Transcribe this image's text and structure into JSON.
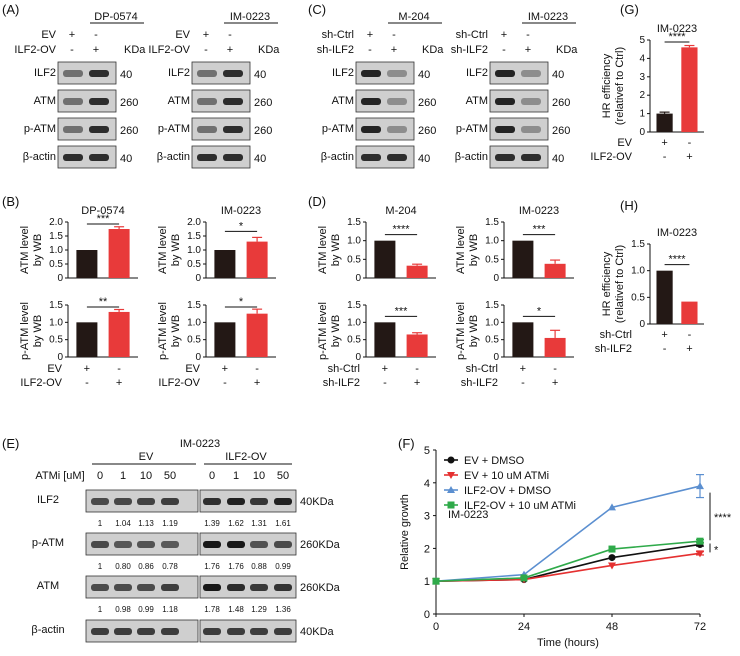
{
  "colors": {
    "black_bar": "#231815",
    "red_bar": "#e83a3a",
    "blue": "#5b8fd0",
    "green": "#2faa4a",
    "red": "#e53030",
    "band": "#2a2a2a"
  },
  "panelA": {
    "label": "(A)",
    "blots": [
      {
        "title": "DP-0574",
        "rows": [
          "EV",
          "ILF2-OV"
        ],
        "marks": [
          [
            "+",
            "-"
          ],
          [
            "-",
            "+"
          ]
        ],
        "kda": "KDa",
        "bands": [
          {
            "name": "ILF2",
            "mw": "40"
          },
          {
            "name": "ATM",
            "mw": "260"
          },
          {
            "name": "p-ATM",
            "mw": "260"
          },
          {
            "name": "β-actin",
            "mw": "40"
          }
        ]
      },
      {
        "title": "IM-0223",
        "rows": [
          "EV",
          "ILF2-OV"
        ],
        "marks": [
          [
            "+",
            "-"
          ],
          [
            "-",
            "+"
          ]
        ],
        "kda": "KDa",
        "bands": [
          {
            "name": "ILF2",
            "mw": "40"
          },
          {
            "name": "ATM",
            "mw": "260"
          },
          {
            "name": "p-ATM",
            "mw": "260"
          },
          {
            "name": "β-actin",
            "mw": "40"
          }
        ]
      }
    ]
  },
  "panelC": {
    "label": "(C)",
    "blots": [
      {
        "title": "M-204",
        "rows": [
          "sh-Ctrl",
          "sh-ILF2"
        ],
        "marks": [
          [
            "+",
            "-"
          ],
          [
            "-",
            "+"
          ]
        ],
        "kda": "KDa",
        "bands": [
          {
            "name": "ILF2",
            "mw": "40"
          },
          {
            "name": "ATM",
            "mw": "260"
          },
          {
            "name": "p-ATM",
            "mw": "260"
          },
          {
            "name": "β-actin",
            "mw": "40"
          }
        ]
      },
      {
        "title": "IM-0223",
        "rows": [
          "sh-Ctrl",
          "sh-ILF2"
        ],
        "marks": [
          [
            "+",
            "-"
          ],
          [
            "-",
            "+"
          ]
        ],
        "kda": "KDa",
        "bands": [
          {
            "name": "ILF2",
            "mw": "40"
          },
          {
            "name": "ATM",
            "mw": "260"
          },
          {
            "name": "p-ATM",
            "mw": "260"
          },
          {
            "name": "β-actin",
            "mw": "40"
          }
        ]
      }
    ]
  },
  "panelB": {
    "label": "(B)",
    "xrows": [
      "EV",
      "ILF2-OV"
    ],
    "xmarks": [
      [
        "+",
        "-"
      ],
      [
        "-",
        "+"
      ]
    ]
  },
  "panelD": {
    "label": "(D)",
    "xrows": [
      "sh-Ctrl",
      "sh-ILF2"
    ],
    "xmarks": [
      [
        "+",
        "-"
      ],
      [
        "-",
        "+"
      ]
    ]
  },
  "panelE": {
    "label": "(E)",
    "title": "IM-0223",
    "groups": [
      "EV",
      "ILF2-OV"
    ],
    "atmi_label": "ATMi [uM]",
    "doses": [
      "0",
      "1",
      "10",
      "50",
      "0",
      "1",
      "10",
      "50"
    ],
    "blots": [
      {
        "name": "ILF2",
        "mw": "40KDa",
        "quant": [
          "1",
          "1.04",
          "1.13",
          "1.19",
          "1.39",
          "1.62",
          "1.31",
          "1.61"
        ]
      },
      {
        "name": "p-ATM",
        "mw": "260KDa",
        "quant": [
          "1",
          "0.80",
          "0.86",
          "0.78",
          "1.76",
          "1.76",
          "0.88",
          "0.99"
        ]
      },
      {
        "name": "ATM",
        "mw": "260KDa",
        "quant": [
          "1",
          "0.98",
          "0.99",
          "1.18",
          "1.78",
          "1.48",
          "1.29",
          "1.36"
        ]
      },
      {
        "name": "β-actin",
        "mw": "40KDa",
        "quant": []
      }
    ]
  },
  "panelG": {
    "label": "(G)"
  },
  "panelH": {
    "label": "(H)"
  },
  "panelF": {
    "label": "(F)"
  },
  "chart_data": [
    {
      "id": "B1",
      "type": "bar",
      "title": "DP-0574",
      "ylabel": "ATM level by WB",
      "ylim": [
        0,
        2.0
      ],
      "yticks": [
        "0",
        "0.5",
        "1.0",
        "1.5",
        "2.0"
      ],
      "categories": [
        "EV",
        "ILF2-OV"
      ],
      "values": [
        1.0,
        1.75
      ],
      "errors": [
        0,
        0.08
      ],
      "significance": "***"
    },
    {
      "id": "B2",
      "type": "bar",
      "title": "IM-0223",
      "ylabel": "ATM level by WB",
      "ylim": [
        0,
        2.0
      ],
      "yticks": [
        "0",
        "0.5",
        "1.0",
        "1.5",
        "2.0"
      ],
      "categories": [
        "EV",
        "ILF2-OV"
      ],
      "values": [
        1.0,
        1.3
      ],
      "errors": [
        0,
        0.15
      ],
      "significance": "*"
    },
    {
      "id": "B3",
      "type": "bar",
      "title": "",
      "ylabel": "p-ATM level by WB",
      "ylim": [
        0,
        1.5
      ],
      "yticks": [
        "0",
        "0.5",
        "1.0",
        "1.5"
      ],
      "categories": [
        "EV",
        "ILF2-OV"
      ],
      "values": [
        1.0,
        1.3
      ],
      "errors": [
        0,
        0.07
      ],
      "significance": "**"
    },
    {
      "id": "B4",
      "type": "bar",
      "title": "",
      "ylabel": "p-ATM level by WB",
      "ylim": [
        0,
        1.5
      ],
      "yticks": [
        "0",
        "0.5",
        "1.0",
        "1.5"
      ],
      "categories": [
        "EV",
        "ILF2-OV"
      ],
      "values": [
        1.0,
        1.25
      ],
      "errors": [
        0,
        0.13
      ],
      "significance": "*"
    },
    {
      "id": "D1",
      "type": "bar",
      "title": "M-204",
      "ylabel": "ATM level by WB",
      "ylim": [
        0,
        1.5
      ],
      "yticks": [
        "0",
        "0.5",
        "1.0",
        "1.5"
      ],
      "categories": [
        "sh-Ctrl",
        "sh-ILF2"
      ],
      "values": [
        1.0,
        0.33
      ],
      "errors": [
        0,
        0.04
      ],
      "significance": "****"
    },
    {
      "id": "D2",
      "type": "bar",
      "title": "IM-0223",
      "ylabel": "ATM level by WB",
      "ylim": [
        0,
        1.5
      ],
      "yticks": [
        "0",
        "0.5",
        "1.0",
        "1.5"
      ],
      "categories": [
        "sh-Ctrl",
        "sh-ILF2"
      ],
      "values": [
        1.0,
        0.38
      ],
      "errors": [
        0,
        0.1
      ],
      "significance": "***"
    },
    {
      "id": "D3",
      "type": "bar",
      "title": "",
      "ylabel": "p-ATM level by WB",
      "ylim": [
        0,
        1.5
      ],
      "yticks": [
        "0",
        "0.5",
        "1.0",
        "1.5"
      ],
      "categories": [
        "sh-Ctrl",
        "sh-ILF2"
      ],
      "values": [
        1.0,
        0.65
      ],
      "errors": [
        0,
        0.05
      ],
      "significance": "***"
    },
    {
      "id": "D4",
      "type": "bar",
      "title": "",
      "ylabel": "p-ATM level by WB",
      "ylim": [
        0,
        1.5
      ],
      "yticks": [
        "0",
        "0.5",
        "1.0",
        "1.5"
      ],
      "categories": [
        "sh-Ctrl",
        "sh-ILF2"
      ],
      "values": [
        1.0,
        0.55
      ],
      "errors": [
        0,
        0.22
      ],
      "significance": "*"
    },
    {
      "id": "G",
      "type": "bar",
      "title": "IM-0223",
      "ylabel": "HR efficiency (relativef to Ctrl)",
      "ylim": [
        0,
        5
      ],
      "yticks": [
        "0",
        "1",
        "2",
        "3",
        "4",
        "5"
      ],
      "categories": [
        "EV",
        "ILF2-OV"
      ],
      "values": [
        1.0,
        4.6
      ],
      "errors": [
        0.08,
        0.1
      ],
      "significance": "****"
    },
    {
      "id": "H",
      "type": "bar",
      "title": "IM-0223",
      "ylabel": "HR efficiency (relativef to Ctrl)",
      "ylim": [
        0,
        1.5
      ],
      "yticks": [
        "0",
        "0.5",
        "1.0",
        "1.5"
      ],
      "categories": [
        "sh-Ctrl",
        "sh-ILF2"
      ],
      "values": [
        1.0,
        0.42
      ],
      "errors": [
        0,
        0
      ],
      "significance": "****"
    },
    {
      "id": "F",
      "type": "line",
      "title": "",
      "annotation": "IM-0223",
      "xlabel": "Time (hours)",
      "ylabel": "Relative growth",
      "xlim": [
        0,
        72
      ],
      "ylim": [
        0,
        5
      ],
      "xticks": [
        "0",
        "24",
        "48",
        "72"
      ],
      "yticks": [
        "0",
        "1",
        "2",
        "3",
        "4",
        "5"
      ],
      "x": [
        0,
        24,
        48,
        72
      ],
      "series": [
        {
          "name": "EV + DMSO",
          "values": [
            1,
            1.05,
            1.72,
            2.12
          ],
          "errors": [
            0,
            0,
            0,
            0.05
          ]
        },
        {
          "name": "EV + 10 uM ATMi",
          "values": [
            1,
            1.05,
            1.48,
            1.85
          ],
          "errors": [
            0,
            0,
            0,
            0.05
          ]
        },
        {
          "name": "ILF2-OV + DMSO",
          "values": [
            1,
            1.2,
            3.25,
            3.9
          ],
          "errors": [
            0,
            0,
            0,
            0.35
          ]
        },
        {
          "name": "ILF2-OV + 10 uM ATMi",
          "values": [
            1,
            1.1,
            1.98,
            2.22
          ],
          "errors": [
            0,
            0,
            0,
            0.05
          ]
        }
      ],
      "significance": [
        "****",
        "*"
      ]
    }
  ]
}
